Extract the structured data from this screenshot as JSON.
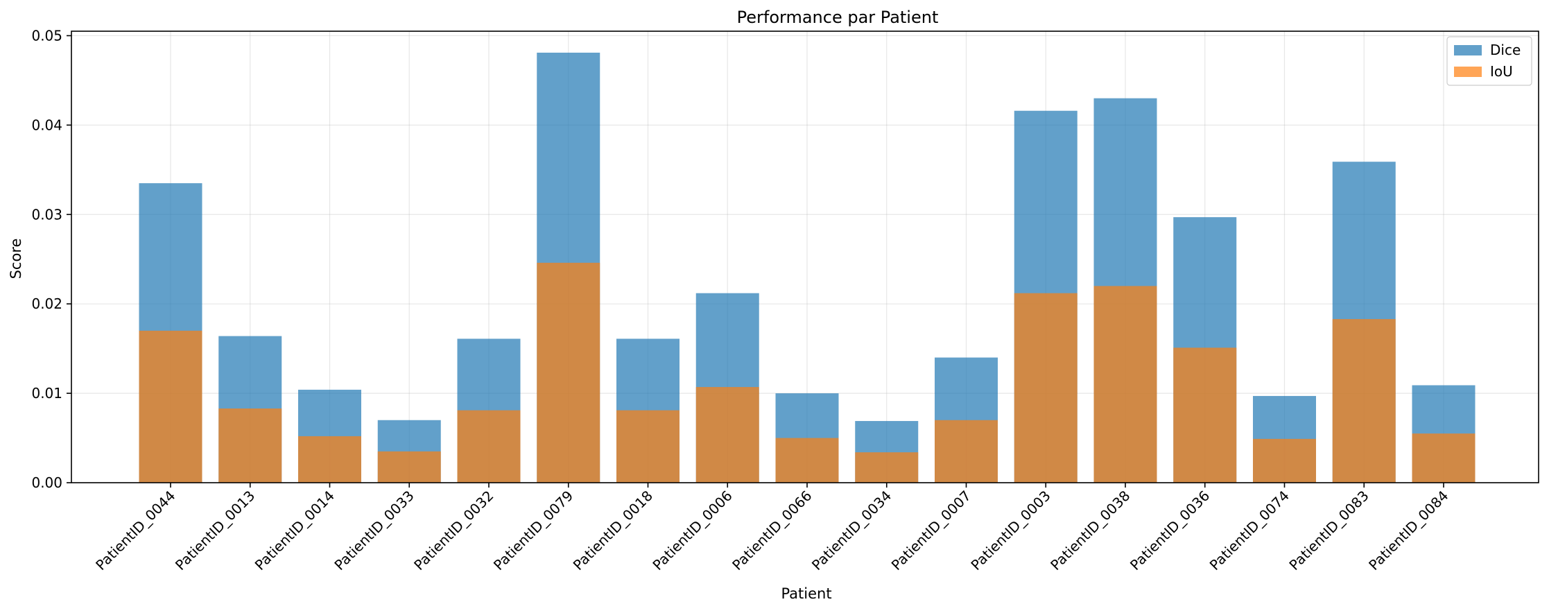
{
  "chart_data": {
    "type": "bar",
    "title": "Performance par Patient",
    "xlabel": "Patient",
    "ylabel": "Score",
    "categories": [
      "PatientID_0044",
      "PatientID_0013",
      "PatientID_0014",
      "PatientID_0033",
      "PatientID_0032",
      "PatientID_0079",
      "PatientID_0018",
      "PatientID_0006",
      "PatientID_0066",
      "PatientID_0034",
      "PatientID_0007",
      "PatientID_0003",
      "PatientID_0038",
      "PatientID_0036",
      "PatientID_0074",
      "PatientID_0083",
      "PatientID_0084"
    ],
    "series": [
      {
        "name": "Dice",
        "color": "#1f77b4",
        "opacity": 0.7,
        "values": [
          0.0335,
          0.0164,
          0.0104,
          0.007,
          0.0161,
          0.0481,
          0.0161,
          0.0212,
          0.01,
          0.0069,
          0.014,
          0.0416,
          0.043,
          0.0297,
          0.0097,
          0.0359,
          0.0109
        ]
      },
      {
        "name": "IoU",
        "color": "#ff7f0e",
        "opacity": 0.7,
        "values": [
          0.017,
          0.0083,
          0.0052,
          0.0035,
          0.0081,
          0.0246,
          0.0081,
          0.0107,
          0.005,
          0.0034,
          0.007,
          0.0212,
          0.022,
          0.0151,
          0.0049,
          0.0183,
          0.0055
        ]
      }
    ],
    "ylim": [
      0,
      0.0505
    ],
    "yticks": [
      "0.00",
      "0.01",
      "0.02",
      "0.03",
      "0.04",
      "0.05"
    ],
    "ytick_values": [
      0,
      0.01,
      0.02,
      0.03,
      0.04,
      0.05
    ],
    "grid": true,
    "legend_position": "top-right",
    "xtick_rotation": 45
  }
}
